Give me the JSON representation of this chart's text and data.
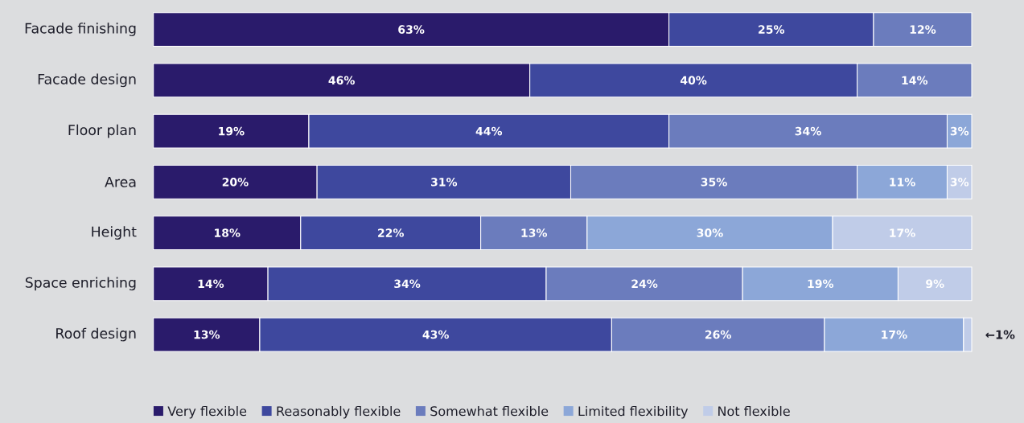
{
  "chart_data": {
    "type": "bar",
    "orientation": "horizontal",
    "stacked": true,
    "legend": "bottom",
    "categories": [
      "Facade finishing",
      "Facade design",
      "Floor plan",
      "Area",
      "Height",
      "Space enriching",
      "Roof design"
    ],
    "series": [
      {
        "name": "Very flexible",
        "color": "#2a1b6b",
        "values": [
          63,
          46,
          19,
          20,
          18,
          14,
          13
        ],
        "value_labels": [
          "63%",
          "46%",
          "19%",
          "20%",
          "18%",
          "14%",
          "13%"
        ]
      },
      {
        "name": "Reasonably flexible",
        "color": "#3e489e",
        "values": [
          25,
          40,
          44,
          31,
          22,
          34,
          43
        ],
        "value_labels": [
          "25%",
          "40%",
          "44%",
          "31%",
          "22%",
          "34%",
          "43%"
        ]
      },
      {
        "name": "Somewhat flexible",
        "color": "#6b7cbd",
        "values": [
          12,
          14,
          34,
          35,
          13,
          24,
          26
        ],
        "value_labels": [
          "12%",
          "14%",
          "34%",
          "35%",
          "13%",
          "24%",
          "26%"
        ]
      },
      {
        "name": "Limited flexibility",
        "color": "#8ca7d8",
        "values": [
          null,
          null,
          3,
          11,
          30,
          19,
          17
        ],
        "value_labels": [
          null,
          null,
          "3%",
          "11%",
          "30%",
          "19%",
          "17%"
        ]
      },
      {
        "name": "Not flexible",
        "color": "#c0cce8",
        "values": [
          null,
          null,
          null,
          3,
          17,
          9,
          1
        ],
        "value_labels": [
          null,
          null,
          null,
          "3%",
          "17%",
          "9%",
          null
        ]
      }
    ],
    "annotations": [
      {
        "text": "←1%",
        "x": 100,
        "y": "Roof design"
      }
    ]
  }
}
